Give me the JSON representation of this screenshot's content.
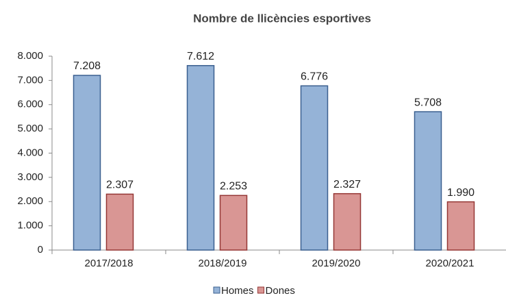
{
  "chart_data": {
    "type": "bar",
    "title": "Nombre de llicències esportives",
    "categories": [
      "2017/2018",
      "2018/2019",
      "2019/2020",
      "2020/2021"
    ],
    "series": [
      {
        "name": "Homes",
        "color": "#95b3d7",
        "values": [
          7208,
          7612,
          6776,
          5708
        ],
        "value_labels": [
          "7.208",
          "7.612",
          "6.776",
          "5.708"
        ]
      },
      {
        "name": "Dones",
        "color": "#d99694",
        "values": [
          2307,
          2253,
          2327,
          1990
        ],
        "value_labels": [
          "2.307",
          "2.253",
          "2.327",
          "1.990"
        ]
      }
    ],
    "ylim": [
      0,
      8000
    ],
    "yticks": [
      0,
      {
        "value": 1000,
        "label": "1.000"
      },
      {
        "value": 2000,
        "label": "2.000"
      },
      {
        "value": 3000,
        "label": "3.000"
      },
      {
        "value": 4000,
        "label": "4.000"
      },
      {
        "value": 5000,
        "label": "5.000"
      },
      {
        "value": 6000,
        "label": "6.000"
      },
      {
        "value": 7000,
        "label": "7.000"
      },
      {
        "value": 8000,
        "label": "8.000"
      }
    ],
    "grid": false,
    "legend": "bottom"
  }
}
